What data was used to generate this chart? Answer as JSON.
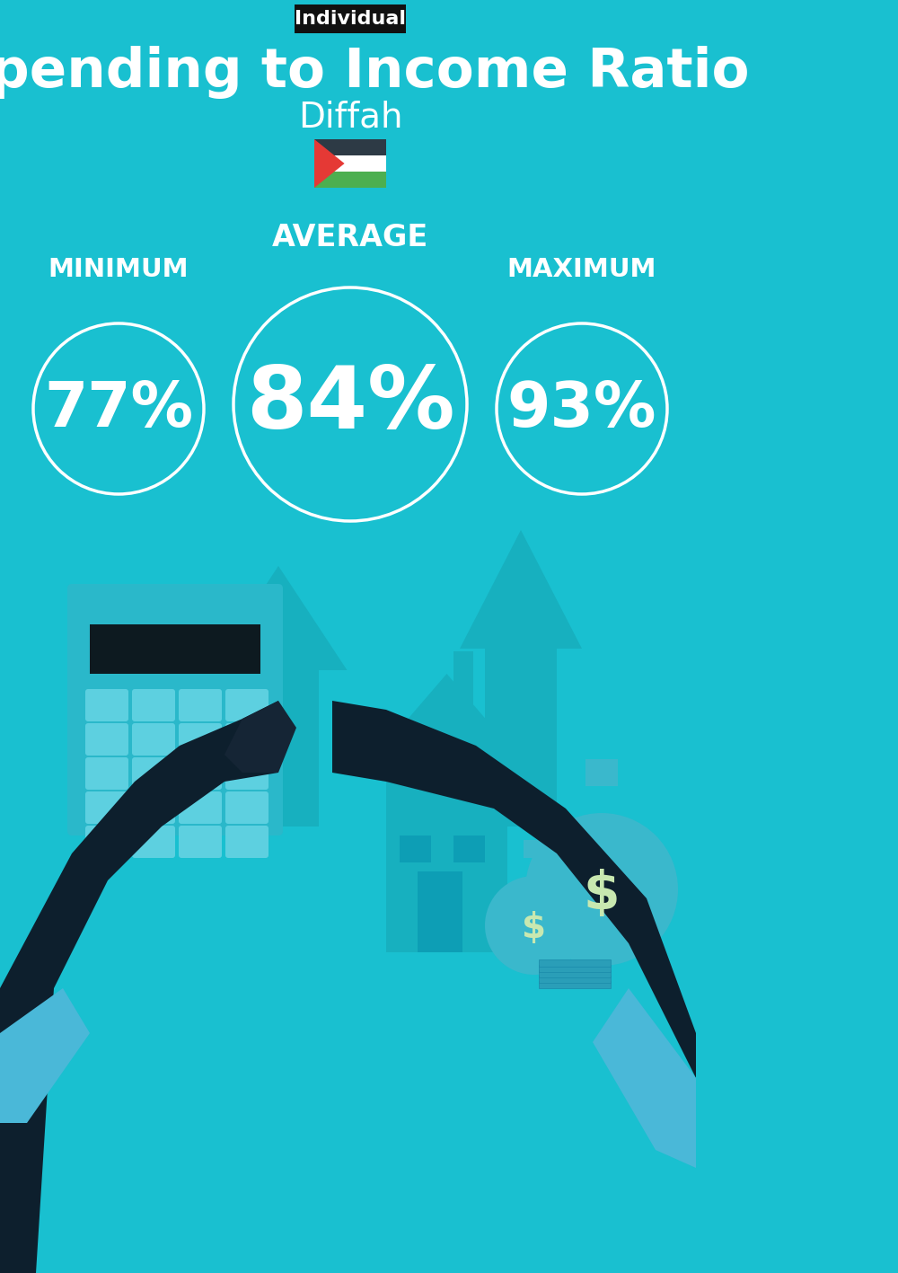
{
  "title": "Spending to Income Ratio",
  "subtitle": "Diffah",
  "tag": "Individual",
  "bg_color": "#19C0D0",
  "tag_bg": "#111111",
  "tag_text_color": "#ffffff",
  "title_color": "#ffffff",
  "subtitle_color": "#ffffff",
  "label_color": "#ffffff",
  "circle_edge_color": "#ffffff",
  "value_color": "#ffffff",
  "min_label": "MINIMUM",
  "avg_label": "AVERAGE",
  "max_label": "MAXIMUM",
  "min_value": "77%",
  "avg_value": "84%",
  "max_value": "93%",
  "title_fontsize": 44,
  "subtitle_fontsize": 28,
  "tag_fontsize": 16,
  "label_fontsize": 21,
  "min_value_fontsize": 50,
  "avg_value_fontsize": 70,
  "max_value_fontsize": 50,
  "arrow_color": "#17b0bf",
  "house_color": "#17b0bf",
  "calc_body_color": "#2ab8ca",
  "calc_btn_color": "#5dd0e0",
  "calc_screen_color": "#0d1a20",
  "hand_color": "#0d1f2d",
  "sleeve_color": "#1a3040",
  "money_bag_color": "#3ab8cc",
  "money_sign_color": "#c8e8b0"
}
